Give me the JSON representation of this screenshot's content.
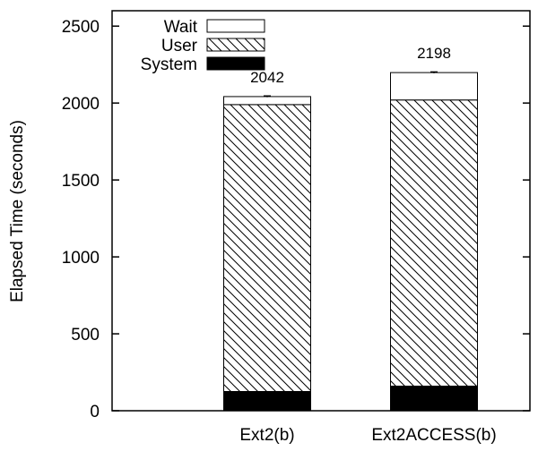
{
  "chart_data": {
    "type": "bar",
    "stacked": true,
    "categories": [
      "Ext2(b)",
      "Ext2ACCESS(b)"
    ],
    "series": [
      {
        "name": "System",
        "values": [
          125,
          160
        ],
        "color": "#000000",
        "fill": "solid"
      },
      {
        "name": "User",
        "values": [
          1865,
          1860
        ],
        "color": "#000000",
        "fill": "diagonal-hatch"
      },
      {
        "name": "Wait",
        "values": [
          52,
          178
        ],
        "color": "#ffffff",
        "fill": "empty"
      }
    ],
    "totals": [
      2042,
      2198
    ],
    "total_labels": [
      "2042",
      "2198"
    ],
    "error_bars": [
      8,
      8
    ],
    "title": "",
    "xlabel": "",
    "ylabel": "Elapsed Time (seconds)",
    "ylim": [
      0,
      2600
    ],
    "yticks": [
      0,
      500,
      1000,
      1500,
      2000,
      2500
    ],
    "grid": false,
    "legend_position": "top-left",
    "legend_order": [
      "Wait",
      "User",
      "System"
    ]
  }
}
